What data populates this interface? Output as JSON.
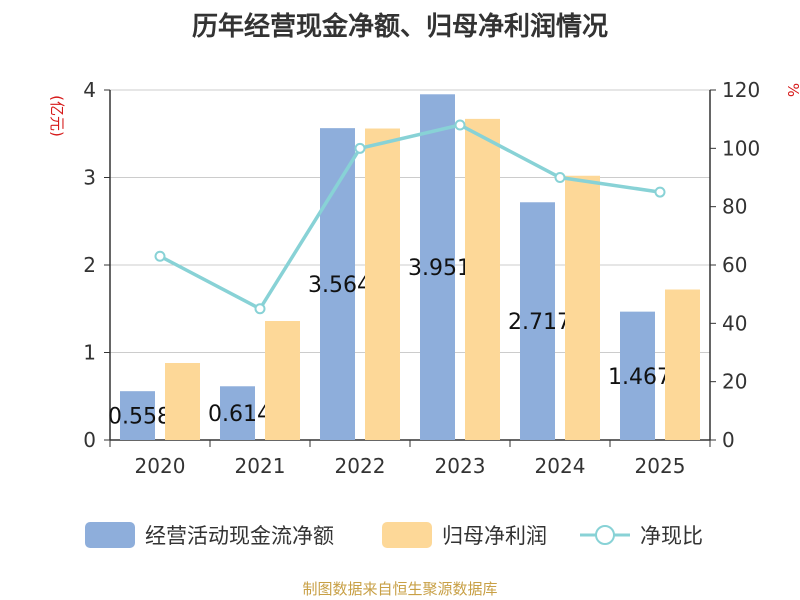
{
  "source_text": "制图数据来自恒生聚源数据库",
  "chart_data": {
    "type": "bar",
    "title": "历年经营现金净额、归母净利润情况",
    "categories": [
      "2020",
      "2021",
      "2022",
      "2023",
      "2024",
      "2025"
    ],
    "series": [
      {
        "name": "经营活动现金流净额",
        "type": "bar",
        "axis": "left",
        "color": "#8eaedb",
        "values": [
          0.558,
          0.614,
          3.564,
          3.951,
          2.717,
          1.467
        ],
        "labels": [
          "0.558",
          "0.614",
          "3.564",
          "3.951",
          "2.717",
          "1.467"
        ]
      },
      {
        "name": "归母净利润",
        "type": "bar",
        "axis": "left",
        "color": "#fdd898",
        "values": [
          0.88,
          1.36,
          3.56,
          3.67,
          3.02,
          1.72
        ]
      },
      {
        "name": "净现比",
        "type": "line",
        "axis": "right",
        "color": "#88d2d6",
        "values": [
          63,
          45,
          100,
          108,
          90,
          85
        ]
      }
    ],
    "y_left": {
      "unit": "(亿元)",
      "min": 0,
      "max": 4,
      "ticks": [
        0,
        1,
        2,
        3,
        4
      ]
    },
    "y_right": {
      "unit": "%",
      "min": 0,
      "max": 120,
      "ticks": [
        0,
        20,
        40,
        60,
        80,
        100,
        120
      ]
    },
    "grid": true,
    "legend_position": "bottom"
  }
}
